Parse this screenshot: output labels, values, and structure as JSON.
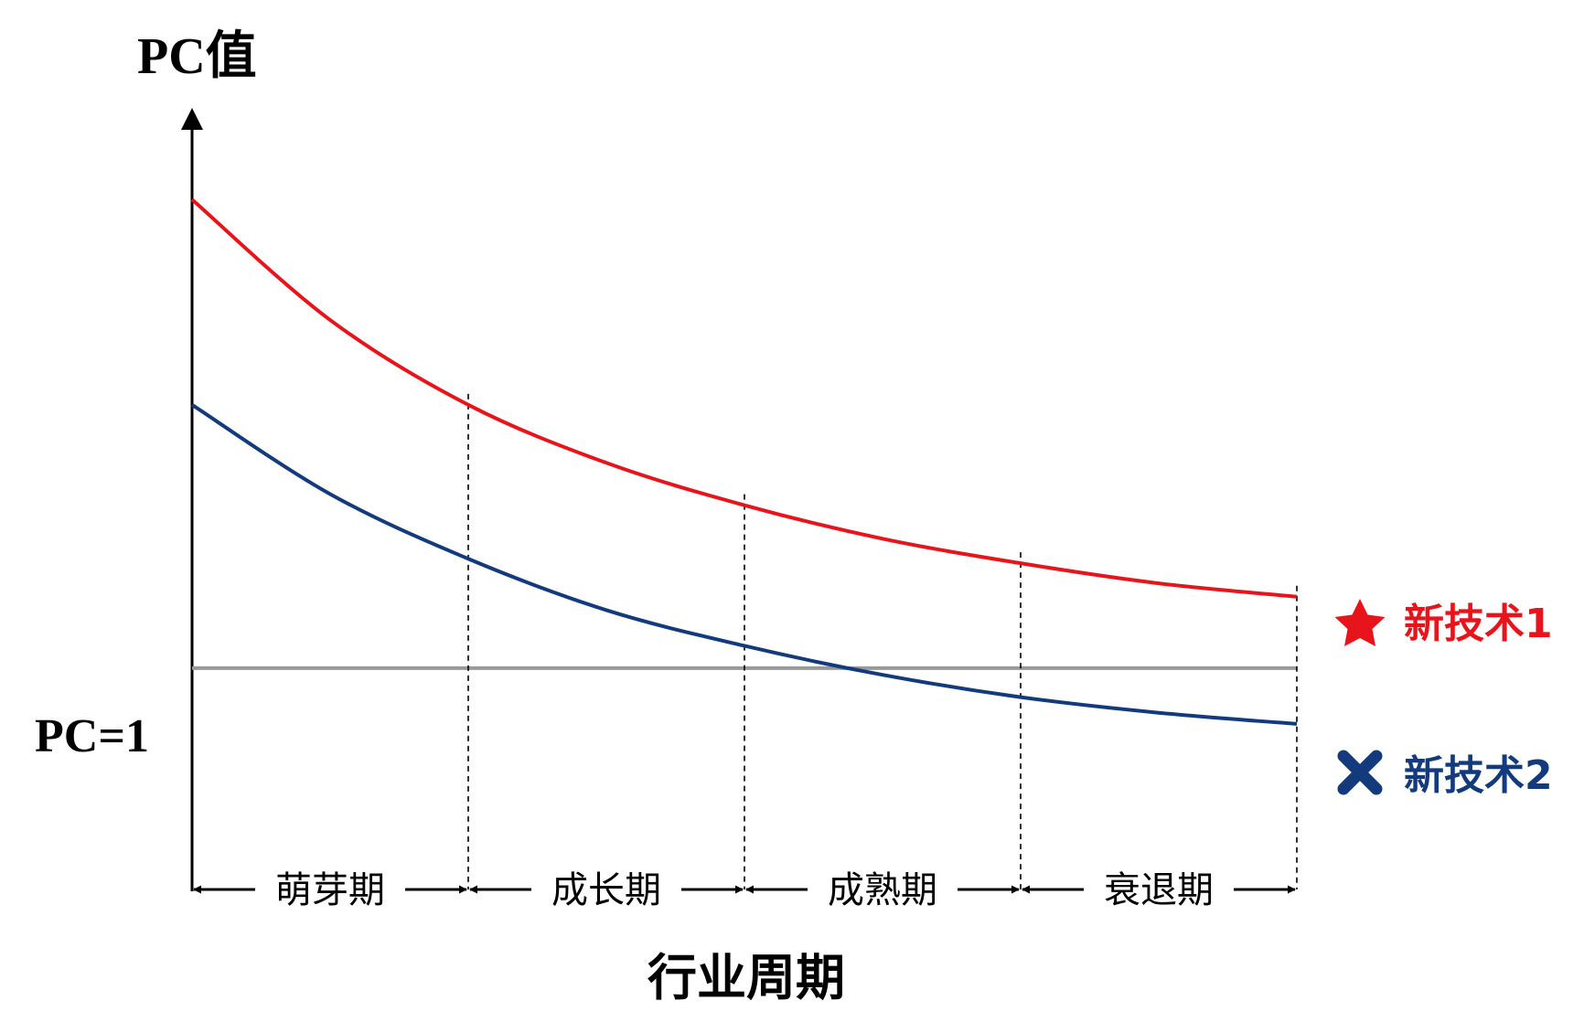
{
  "chart_data": {
    "type": "line",
    "y_axis_label": "PC值",
    "x_axis_label": "行业周期",
    "reference_line": {
      "label": "PC=1",
      "value": 1,
      "color": "#999999"
    },
    "phases": [
      "萌芽期",
      "成长期",
      "成熟期",
      "衰退期"
    ],
    "x_range": [
      0,
      4
    ],
    "y_range": [
      0,
      3.4
    ],
    "series": [
      {
        "name": "新技术1",
        "marker": "star-icon",
        "color": "#e8141c",
        "x": [
          0,
          0.5,
          1,
          1.5,
          2,
          2.5,
          3,
          3.5,
          4
        ],
        "y": [
          3.1,
          2.56,
          2.18,
          1.92,
          1.73,
          1.58,
          1.47,
          1.38,
          1.32
        ]
      },
      {
        "name": "新技术2",
        "marker": "x-mark-icon",
        "color": "#123a7c",
        "x": [
          0,
          0.5,
          1,
          1.5,
          2,
          2.5,
          3,
          3.5,
          4
        ],
        "y": [
          2.18,
          1.78,
          1.49,
          1.26,
          1.1,
          0.97,
          0.87,
          0.8,
          0.75
        ]
      }
    ]
  }
}
